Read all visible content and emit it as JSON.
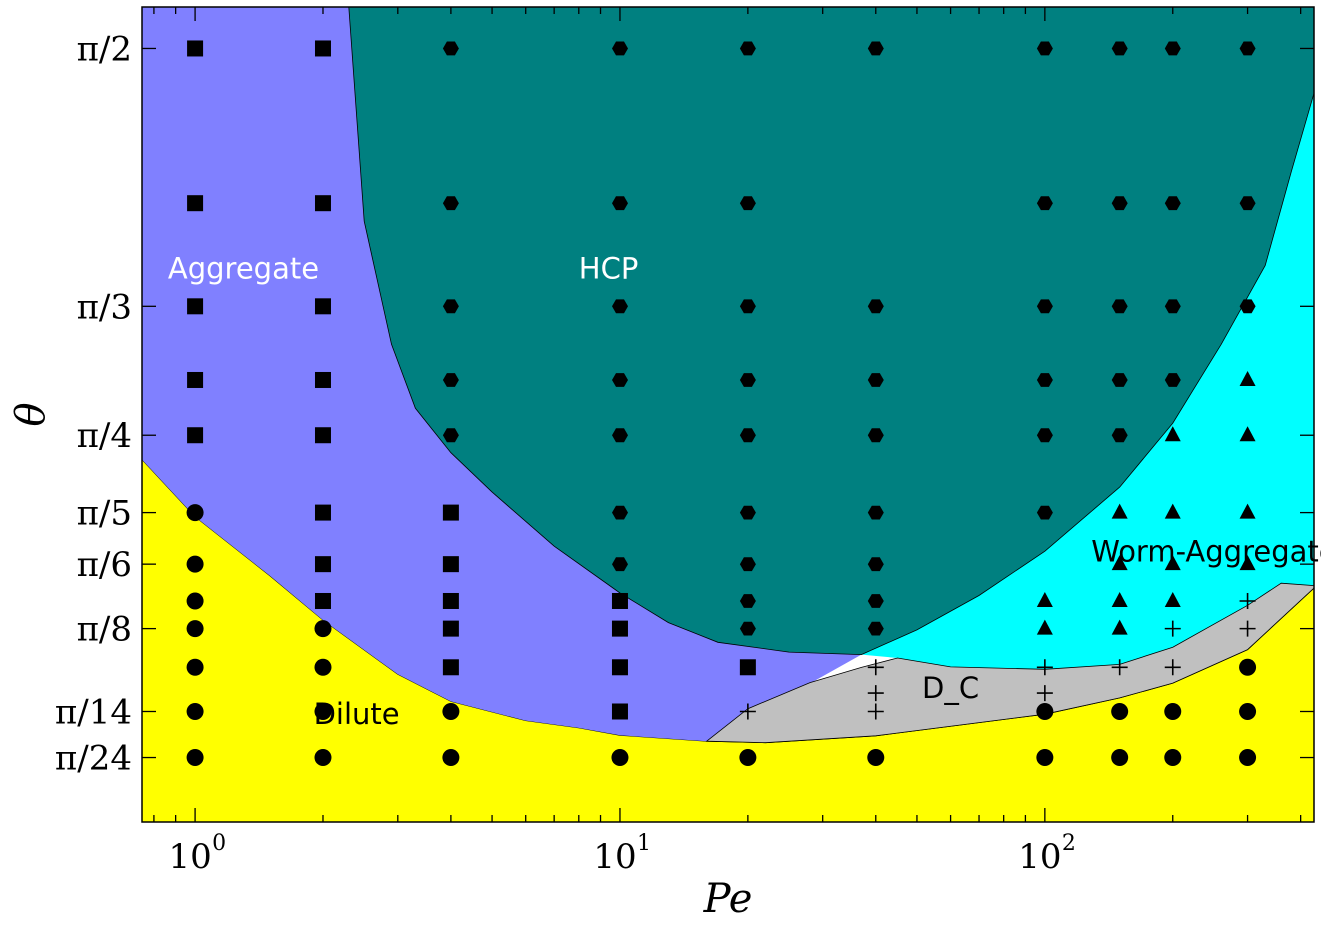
{
  "chart_data": {
    "type": "scatter",
    "xlabel": "Pe",
    "ylabel": "θ",
    "xscale": "log",
    "xlim": [
      0.75,
      430
    ],
    "ylim": [
      0.0,
      1.655
    ],
    "grid": false,
    "xticks": [
      {
        "value": 1,
        "label": "10",
        "exp": "0"
      },
      {
        "value": 10,
        "label": "10",
        "exp": "1"
      },
      {
        "value": 100,
        "label": "10",
        "exp": "2"
      }
    ],
    "yticks": [
      {
        "value": 1.5708,
        "label": "π/2"
      },
      {
        "value": 1.0472,
        "label": "π/3"
      },
      {
        "value": 0.7854,
        "label": "π/4"
      },
      {
        "value": 0.6283,
        "label": "π/5"
      },
      {
        "value": 0.5236,
        "label": "π/6"
      },
      {
        "value": 0.3927,
        "label": "π/8"
      },
      {
        "value": 0.2244,
        "label": "π/14"
      },
      {
        "value": 0.1309,
        "label": "π/24"
      }
    ],
    "regions": [
      {
        "name": "Dilute",
        "color": "#ffff00",
        "label_at": [
          2.4,
          0.215
        ]
      },
      {
        "name": "Aggregate",
        "color": "#8080ff",
        "label_at": [
          1.3,
          1.12
        ]
      },
      {
        "name": "HCP",
        "color": "#008080",
        "label_at": [
          9.4,
          1.12
        ]
      },
      {
        "name": "Worm-Aggregate",
        "color": "#00ffff",
        "label_at": [
          250,
          0.545
        ]
      },
      {
        "name": "D_C",
        "color": "#c0c0c0",
        "label_at": [
          60,
          0.268
        ]
      }
    ],
    "series": [
      {
        "marker": "square",
        "points": [
          [
            1,
            1.5708
          ],
          [
            2,
            1.5708
          ],
          [
            1,
            1.2566
          ],
          [
            2,
            1.2566
          ],
          [
            1,
            1.0472
          ],
          [
            2,
            1.0472
          ],
          [
            1,
            0.8976
          ],
          [
            2,
            0.8976
          ],
          [
            1,
            0.7854
          ],
          [
            2,
            0.7854
          ],
          [
            2,
            0.6283
          ],
          [
            4,
            0.6283
          ],
          [
            2,
            0.5236
          ],
          [
            4,
            0.5236
          ],
          [
            2,
            0.4488
          ],
          [
            4,
            0.4488
          ],
          [
            10,
            0.4488
          ],
          [
            4,
            0.3927
          ],
          [
            10,
            0.3927
          ],
          [
            4,
            0.3142
          ],
          [
            10,
            0.3142
          ],
          [
            20,
            0.3142
          ],
          [
            10,
            0.2244
          ]
        ]
      },
      {
        "marker": "circle",
        "points": [
          [
            1,
            0.6283
          ],
          [
            1,
            0.5236
          ],
          [
            1,
            0.4488
          ],
          [
            1,
            0.3927
          ],
          [
            1,
            0.3142
          ],
          [
            1,
            0.2244
          ],
          [
            1,
            0.1309
          ],
          [
            2,
            0.3927
          ],
          [
            2,
            0.3142
          ],
          [
            2,
            0.2244
          ],
          [
            2,
            0.1309
          ],
          [
            4,
            0.2244
          ],
          [
            4,
            0.1309
          ],
          [
            10,
            0.1309
          ],
          [
            20,
            0.1309
          ],
          [
            40,
            0.1309
          ],
          [
            100,
            0.2244
          ],
          [
            100,
            0.1309
          ],
          [
            150,
            0.2244
          ],
          [
            150,
            0.1309
          ],
          [
            200,
            0.2244
          ],
          [
            200,
            0.1309
          ],
          [
            300,
            0.3142
          ],
          [
            300,
            0.2244
          ],
          [
            300,
            0.1309
          ]
        ]
      },
      {
        "marker": "hexagon",
        "points": [
          [
            4,
            1.5708
          ],
          [
            10,
            1.5708
          ],
          [
            20,
            1.5708
          ],
          [
            40,
            1.5708
          ],
          [
            100,
            1.5708
          ],
          [
            150,
            1.5708
          ],
          [
            200,
            1.5708
          ],
          [
            300,
            1.5708
          ],
          [
            4,
            1.2566
          ],
          [
            10,
            1.2566
          ],
          [
            20,
            1.2566
          ],
          [
            100,
            1.2566
          ],
          [
            150,
            1.2566
          ],
          [
            200,
            1.2566
          ],
          [
            300,
            1.2566
          ],
          [
            4,
            1.0472
          ],
          [
            10,
            1.0472
          ],
          [
            20,
            1.0472
          ],
          [
            40,
            1.0472
          ],
          [
            100,
            1.0472
          ],
          [
            150,
            1.0472
          ],
          [
            200,
            1.0472
          ],
          [
            300,
            1.0472
          ],
          [
            4,
            0.8976
          ],
          [
            10,
            0.8976
          ],
          [
            20,
            0.8976
          ],
          [
            40,
            0.8976
          ],
          [
            100,
            0.8976
          ],
          [
            150,
            0.8976
          ],
          [
            200,
            0.8976
          ],
          [
            4,
            0.7854
          ],
          [
            10,
            0.7854
          ],
          [
            20,
            0.7854
          ],
          [
            40,
            0.7854
          ],
          [
            100,
            0.7854
          ],
          [
            150,
            0.7854
          ],
          [
            10,
            0.6283
          ],
          [
            20,
            0.6283
          ],
          [
            40,
            0.6283
          ],
          [
            100,
            0.6283
          ],
          [
            10,
            0.5236
          ],
          [
            20,
            0.5236
          ],
          [
            40,
            0.5236
          ],
          [
            20,
            0.4488
          ],
          [
            40,
            0.4488
          ],
          [
            20,
            0.3927
          ],
          [
            40,
            0.3927
          ]
        ]
      },
      {
        "marker": "triangle",
        "points": [
          [
            300,
            0.8976
          ],
          [
            200,
            0.7854
          ],
          [
            300,
            0.7854
          ],
          [
            150,
            0.6283
          ],
          [
            200,
            0.6283
          ],
          [
            300,
            0.6283
          ],
          [
            150,
            0.5236
          ],
          [
            200,
            0.5236
          ],
          [
            300,
            0.5236
          ],
          [
            100,
            0.4488
          ],
          [
            150,
            0.4488
          ],
          [
            200,
            0.4488
          ],
          [
            100,
            0.3927
          ],
          [
            150,
            0.3927
          ]
        ]
      },
      {
        "marker": "plus",
        "points": [
          [
            300,
            0.4488
          ],
          [
            200,
            0.3927
          ],
          [
            300,
            0.3927
          ],
          [
            40,
            0.3142
          ],
          [
            100,
            0.3142
          ],
          [
            150,
            0.3142
          ],
          [
            200,
            0.3142
          ],
          [
            40,
            0.2618
          ],
          [
            100,
            0.2618
          ],
          [
            20,
            0.2244
          ],
          [
            40,
            0.2244
          ]
        ]
      }
    ]
  }
}
